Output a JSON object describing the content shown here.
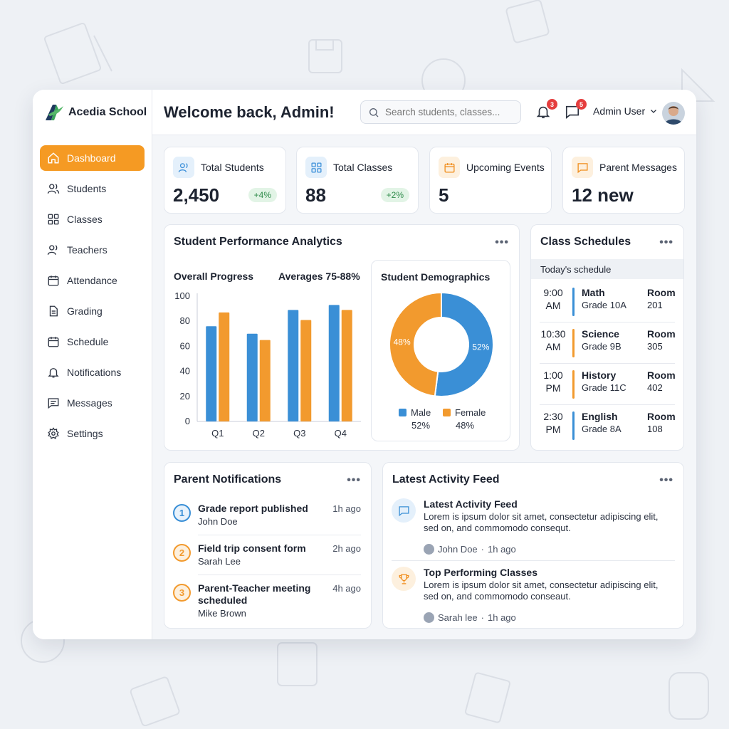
{
  "brand": {
    "name": "Acedia School"
  },
  "sidebar": {
    "items": [
      {
        "label": "Dashboard",
        "icon": "home-icon",
        "active": true
      },
      {
        "label": "Students",
        "icon": "users-icon"
      },
      {
        "label": "Classes",
        "icon": "grid-icon"
      },
      {
        "label": "Teachers",
        "icon": "teacher-icon"
      },
      {
        "label": "Attendance",
        "icon": "calendar-icon"
      },
      {
        "label": "Grading",
        "icon": "document-icon"
      },
      {
        "label": "Schedule",
        "icon": "calendar-icon"
      },
      {
        "label": "Notifications",
        "icon": "bell-icon"
      },
      {
        "label": "Messages",
        "icon": "message-icon"
      },
      {
        "label": "Settings",
        "icon": "gear-icon"
      }
    ]
  },
  "header": {
    "title": "Welcome back, Admin!",
    "search_placeholder": "Search students, classes...",
    "notifications_count": "3",
    "messages_count": "5",
    "user_name": "Admin User"
  },
  "stats": [
    {
      "label": "Total Students",
      "value": "2,450",
      "change": "+4%",
      "icon": "users-icon",
      "color": "#3b8fd9",
      "bg": "#e4f0fb"
    },
    {
      "label": "Total Classes",
      "value": "88",
      "change": "+2%",
      "icon": "grid-icon",
      "color": "#3b8fd9",
      "bg": "#e4f0fb"
    },
    {
      "label": "Upcoming Events",
      "value": "5",
      "change": "",
      "icon": "calendar-icon",
      "color": "#f08c1a",
      "bg": "#fdf0de"
    },
    {
      "label": "Parent Messages",
      "value": "12 new",
      "change": "",
      "icon": "message-icon",
      "color": "#f08c1a",
      "bg": "#fdf0de"
    }
  ],
  "analytics": {
    "title": "Student Performance Analytics",
    "progress_label": "Overall Progress",
    "averages_label": "Averages 75-88%",
    "demographics_title": "Student Demographics"
  },
  "chart_data": [
    {
      "type": "bar",
      "title": "Overall Progress",
      "categories": [
        "Q1",
        "Q2",
        "Q3",
        "Q4"
      ],
      "series": [
        {
          "values": [
            76,
            70,
            89,
            93
          ],
          "color": "#3a8fd6"
        },
        {
          "values": [
            87,
            65,
            81,
            89
          ],
          "color": "#f29a2e"
        }
      ],
      "ylim": [
        0,
        100
      ],
      "yticks": [
        0,
        20,
        40,
        60,
        80,
        100
      ],
      "grid": false
    },
    {
      "type": "pie",
      "title": "Student Demographics",
      "labels": [
        "Male",
        "Female"
      ],
      "values": [
        52,
        48
      ],
      "value_labels": [
        "52%",
        "48%"
      ],
      "colors": [
        "#3a8fd6",
        "#f29a2e"
      ],
      "legend": "bottom"
    }
  ],
  "schedule": {
    "title": "Class Schedules",
    "subtitle": "Today's schedule",
    "rows": [
      {
        "time_a": "9:00",
        "time_b": "AM",
        "subject": "Math",
        "grade": "Grade 10A",
        "room_label": "Room",
        "room": "201",
        "color": "#3a8fd6"
      },
      {
        "time_a": "10:30",
        "time_b": "AM",
        "subject": "Science",
        "grade": "Grade 9B",
        "room_label": "Room",
        "room": "305",
        "color": "#f29a2e"
      },
      {
        "time_a": "1:00",
        "time_b": "PM",
        "subject": "History",
        "grade": "Grade 11C",
        "room_label": "Room",
        "room": "402",
        "color": "#f29a2e"
      },
      {
        "time_a": "2:30",
        "time_b": "PM",
        "subject": "English",
        "grade": "Grade 8A",
        "room_label": "Room",
        "room": "108",
        "color": "#3a8fd6"
      }
    ]
  },
  "parent_notifications": {
    "title": "Parent Notifications",
    "items": [
      {
        "num": "1",
        "title": "Grade report published",
        "who": "John Doe",
        "time": "1h ago",
        "color": "#3a8fd6",
        "bg": "#e8f2fb"
      },
      {
        "num": "2",
        "title": "Field trip consent form",
        "who": "Sarah Lee",
        "time": "2h ago",
        "color": "#f29a2e",
        "bg": "#fdf0de"
      },
      {
        "num": "3",
        "title": "Parent-Teacher meeting scheduled",
        "who": "Mike Brown",
        "time": "4h ago",
        "color": "#f29a2e",
        "bg": "#fdf0de"
      }
    ]
  },
  "feed": {
    "title": "Latest Activity Feed",
    "items": [
      {
        "title": "Latest Activity Feed",
        "body": "Lorem is ipsum dolor sit amet, consectetur adipiscing elit, sed on, and commomodo consequt.",
        "who": "John Doe",
        "time": "1h ago",
        "icon": "chat-icon",
        "color": "#3a8fd6",
        "bg": "#e4f0fb"
      },
      {
        "title": "Top Performing Classes",
        "body": "Lorem is ipsum dolor sit amet, consectetur adipiscing elit, sed on, and commomodo conseaut.",
        "who": "Sarah lee",
        "time": "1h ago",
        "icon": "trophy-icon",
        "color": "#f08c1a",
        "bg": "#fdf0de"
      }
    ]
  }
}
